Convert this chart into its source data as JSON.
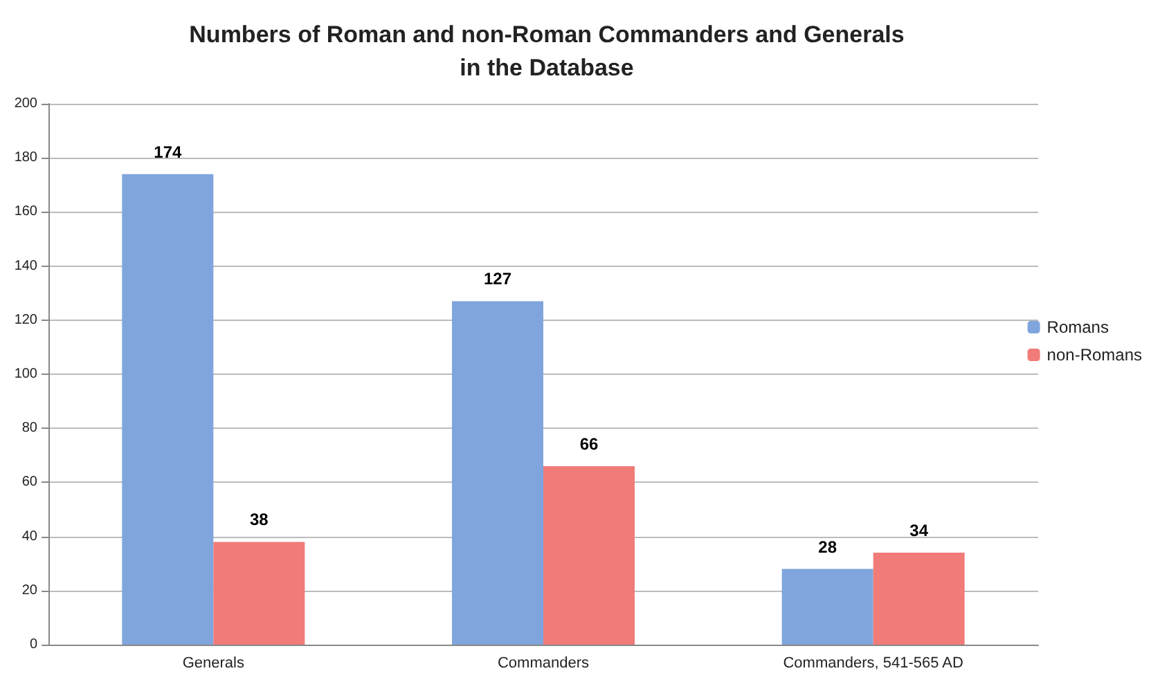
{
  "chart_data": {
    "type": "bar",
    "title": "Numbers of Roman and non-Roman Commanders and Generals\nin the Database",
    "categories": [
      "Generals",
      "Commanders",
      "Commanders, 541-565 AD"
    ],
    "series": [
      {
        "name": "Romans",
        "color": "#7fa5dc",
        "values": [
          174,
          127,
          28
        ]
      },
      {
        "name": "non-Romans",
        "color": "#f07b78",
        "values": [
          38,
          66,
          34
        ]
      }
    ],
    "ylim": [
      0,
      200
    ],
    "yticks": [
      0,
      20,
      40,
      60,
      80,
      100,
      120,
      140,
      160,
      180,
      200
    ],
    "grid": "y",
    "legend": "right",
    "data_labels": true
  }
}
